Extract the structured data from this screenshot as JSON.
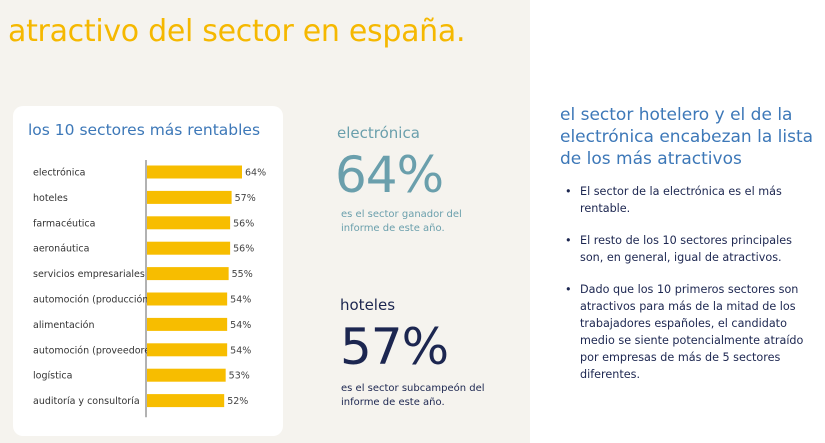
{
  "title": "atractivo del sector en españa.",
  "card_title": "los 10 sectores más rentables",
  "chart_data": {
    "type": "bar",
    "orientation": "horizontal",
    "categories": [
      "electrónica",
      "hoteles",
      "farmacéutica",
      "aeronáutica",
      "servicios empresariales",
      "automoción (producción)",
      "alimentación",
      "automoción (proveedores)",
      "logística",
      "auditoría y consultoría"
    ],
    "values": [
      64,
      57,
      56,
      56,
      55,
      54,
      54,
      54,
      53,
      52
    ],
    "value_labels": [
      "64%",
      "57%",
      "56%",
      "56%",
      "55%",
      "54%",
      "54%",
      "54%",
      "53%",
      "52%"
    ],
    "unit": "%",
    "bar_color": "#f7bd00",
    "grid": false
  },
  "stats": [
    {
      "name": "electrónica",
      "value": "64%",
      "desc1": "es el sector ganador del",
      "desc2": "informe de este año.",
      "color": "#6a9fac"
    },
    {
      "name": "hoteles",
      "value": "57%",
      "desc1": "es el sector subcampeón del",
      "desc2": "informe de este año.",
      "color": "#1c2650"
    }
  ],
  "right": {
    "title": "el sector hotelero y el de la electrónica encabezan la lista de los más atractivos",
    "bullets": [
      "El sector de la electrónica es el más rentable.",
      "El resto de los 10 sectores principales son, en general, igual de atractivos.",
      "Dado que los 10 primeros sectores son atractivos para más de la mitad de los trabajadores españoles, el candidato medio se siente potencialmente atraído por empresas de más de 5 sectores diferentes."
    ]
  }
}
